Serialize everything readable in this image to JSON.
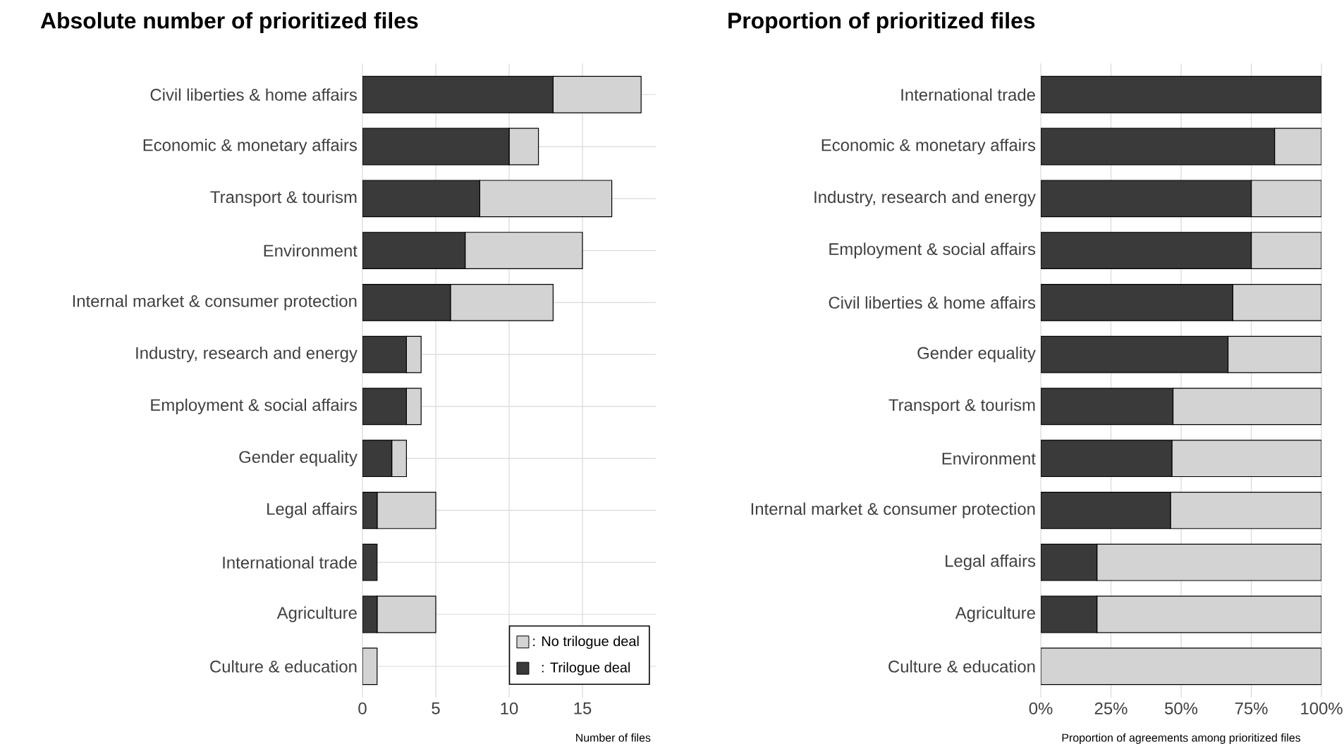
{
  "chart_data": [
    {
      "type": "bar",
      "orientation": "horizontal",
      "stacked": true,
      "title": "Absolute number of prioritized files",
      "xlabel": "Number of files",
      "categories": [
        "Civil liberties & home affairs",
        "Economic & monetary affairs",
        "Transport & tourism",
        "Environment",
        "Internal market & consumer protection",
        "Industry, research and energy",
        "Employment & social affairs",
        "Gender equality",
        "Legal affairs",
        "International trade",
        "Agriculture",
        "Culture & education"
      ],
      "series": [
        {
          "name": ": Trilogue deal",
          "color": "#3a3a3a",
          "values": [
            13,
            10,
            8,
            7,
            6,
            3,
            3,
            2,
            1,
            1,
            1,
            0
          ]
        },
        {
          "name": ": No trilogue deal",
          "color": "#d3d3d3",
          "values": [
            6,
            2,
            9,
            8,
            7,
            1,
            1,
            1,
            4,
            0,
            4,
            1
          ]
        }
      ],
      "xlim": [
        0,
        20
      ],
      "xticks": [
        0,
        5,
        10,
        15
      ],
      "grid": true,
      "legend": "bottom right"
    },
    {
      "type": "bar",
      "orientation": "horizontal",
      "stacked": true,
      "title": "Proportion of prioritized files",
      "xlabel": "Proportion of agreements among prioritized files",
      "categories": [
        "International trade",
        "Economic & monetary affairs",
        "Industry, research and energy",
        "Employment & social affairs",
        "Civil liberties & home affairs",
        "Gender equality",
        "Transport & tourism",
        "Environment",
        "Internal market & consumer protection",
        "Legal affairs",
        "Agriculture",
        "Culture & education"
      ],
      "series": [
        {
          "color": "#3a3a3a",
          "values": [
            100,
            83.3,
            75,
            75,
            68.4,
            66.7,
            47.1,
            46.7,
            46.2,
            20,
            20,
            0
          ]
        },
        {
          "color": "#d3d3d3",
          "values": [
            0,
            16.7,
            25,
            25,
            31.6,
            33.3,
            52.9,
            53.3,
            53.8,
            80,
            80,
            100
          ]
        }
      ],
      "xlim": [
        0,
        100
      ],
      "xticks": [
        {
          "value": 0,
          "label": "0%"
        },
        {
          "value": 25,
          "label": "25%"
        },
        {
          "value": 50,
          "label": "50%"
        },
        {
          "value": 75,
          "label": "75%"
        },
        {
          "value": 100,
          "label": "100%"
        }
      ],
      "grid": true
    }
  ]
}
